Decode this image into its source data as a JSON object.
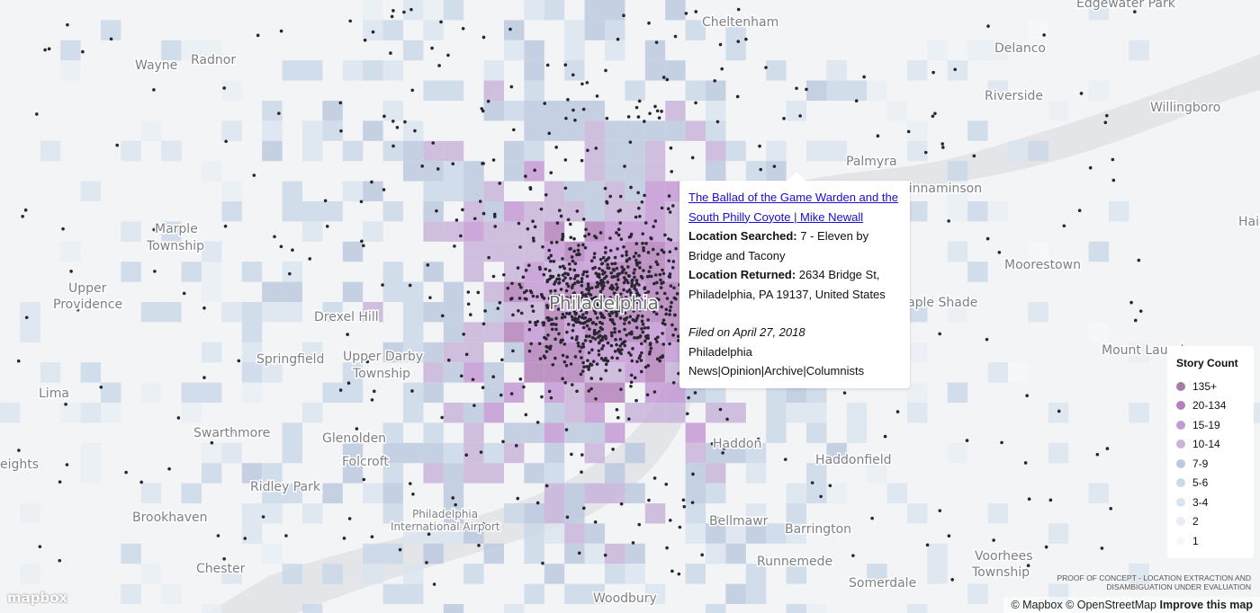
{
  "map": {
    "places": [
      "Edgewater Park",
      "Cheltenham",
      "Delanco",
      "Wayne",
      "Radnor",
      "Riverside",
      "Willingboro",
      "Palmyra",
      "Cinnaminson",
      "Marple",
      "Township",
      "Hai",
      "Upper",
      "Providence",
      "Moorestown",
      "Drexel Hill",
      "Maple Shade",
      "Philadelphia",
      "Springfield",
      "Upper Darby",
      "Township",
      "Mount Laurel",
      "Lima",
      "Swarthmore",
      "Glenolden",
      "Folcroft",
      "Haddon",
      "Haddonfield",
      "eights",
      "Ridley Park",
      "Philadelphia",
      "International Airport",
      "Brookhaven",
      "Bellmawr",
      "Barrington",
      "Chester",
      "Runnemede",
      "Voorhees",
      "Township",
      "Somerdale",
      "Woodbury"
    ]
  },
  "popup": {
    "link": "The Ballad of the Game Warden and the South Philly Coyote | Mike Newall",
    "searched_label": "Location Searched:",
    "searched": "7 - Eleven by Bridge and Tacony",
    "returned_label": "Location Returned:",
    "returned": "2634 Bridge St, Philadelphia, PA 19137, United States",
    "filed": "Filed on April 27, 2018",
    "source": "Philadelphia News|Opinion|Archive|Columnists"
  },
  "legend": {
    "title": "Story Count",
    "items": [
      {
        "label": "135+",
        "color": "#a57ca8"
      },
      {
        "label": "20-134",
        "color": "#b382bb"
      },
      {
        "label": "15-19",
        "color": "#c39ad3"
      },
      {
        "label": "10-14",
        "color": "#c9b4da"
      },
      {
        "label": "7-9",
        "color": "#bcc9df"
      },
      {
        "label": "5-6",
        "color": "#cad8e8"
      },
      {
        "label": "3-4",
        "color": "#dbe4ef"
      },
      {
        "label": "2",
        "color": "#e9eef5"
      },
      {
        "label": "1",
        "color": "#f6f7fa"
      }
    ]
  },
  "notice": "PROOF OF CONCEPT - LOCATION EXTRACTION AND DISAMBIGUATION UNDER EVALUATION",
  "logo": "mapbox",
  "attribution": [
    "© Mapbox",
    "© OpenStreetMap",
    "Improve this map"
  ]
}
